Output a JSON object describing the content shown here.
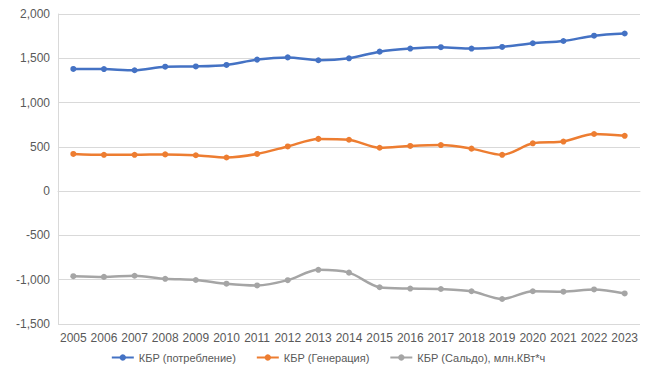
{
  "chart_data": {
    "type": "line",
    "categories": [
      "2005",
      "2006",
      "2007",
      "2008",
      "2009",
      "2010",
      "2011",
      "2012",
      "2013",
      "2014",
      "2015",
      "2016",
      "2017",
      "2018",
      "2019",
      "2020",
      "2021",
      "2022",
      "2023"
    ],
    "series": [
      {
        "name": "КБР (потребление)",
        "color": "#4472C4",
        "marker": "circle",
        "values": [
          1380,
          1378,
          1365,
          1405,
          1408,
          1425,
          1485,
          1510,
          1478,
          1500,
          1575,
          1610,
          1625,
          1610,
          1628,
          1670,
          1695,
          1755,
          1780
        ]
      },
      {
        "name": "КБР (Генерация)",
        "color": "#ED7D31",
        "marker": "circle",
        "values": [
          420,
          410,
          410,
          415,
          405,
          380,
          420,
          505,
          590,
          580,
          490,
          510,
          520,
          480,
          410,
          540,
          560,
          645,
          625
        ]
      },
      {
        "name": "КБР (Сальдо), млн.КВт*ч",
        "color": "#A5A5A5",
        "marker": "circle",
        "values": [
          -960,
          -968,
          -955,
          -990,
          -1003,
          -1045,
          -1065,
          -1005,
          -888,
          -920,
          -1085,
          -1100,
          -1105,
          -1130,
          -1218,
          -1130,
          -1135,
          -1110,
          -1155
        ]
      }
    ],
    "ylim": [
      -1500,
      2000
    ],
    "yticks": [
      -1500,
      -1000,
      -500,
      0,
      500,
      1000,
      1500,
      2000
    ],
    "grid": true,
    "legend": "bottom",
    "line_style": "solid"
  }
}
